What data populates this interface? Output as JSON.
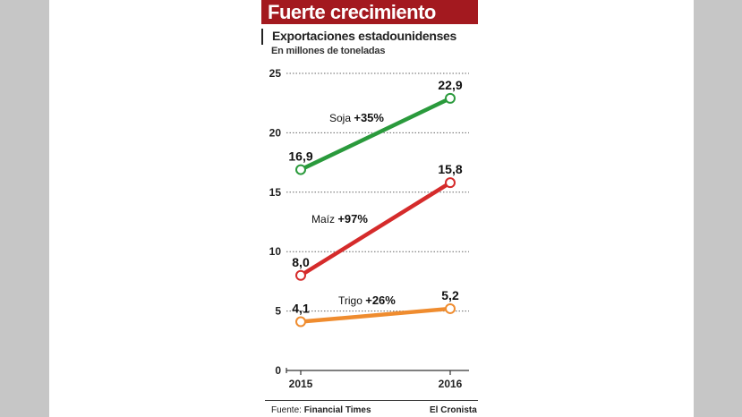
{
  "chart_data": {
    "type": "line",
    "title": "Fuerte crecimiento",
    "subtitle": "Exportaciones estadounidenses",
    "ylabel": "En millones de toneladas",
    "x": [
      "2015",
      "2016"
    ],
    "ylim": [
      0,
      25
    ],
    "yticks": [
      0,
      5,
      10,
      15,
      20,
      25
    ],
    "grid": "dotted horizontal",
    "series": [
      {
        "name": "Soja",
        "change": "+35%",
        "values": [
          16.9,
          22.9
        ],
        "value_labels": [
          "16,9",
          "22,9"
        ],
        "color": "#2a9a3c"
      },
      {
        "name": "Maíz",
        "change": "+97%",
        "values": [
          8.0,
          15.8
        ],
        "value_labels": [
          "8,0",
          "15,8"
        ],
        "color": "#d52b2b"
      },
      {
        "name": "Trigo",
        "change": "+26%",
        "values": [
          4.1,
          5.2
        ],
        "value_labels": [
          "4,1",
          "5,2"
        ],
        "color": "#ef8c2f"
      }
    ]
  },
  "footer": {
    "source_prefix": "Fuente:",
    "source_name": "Financial Times",
    "brand": "El Cronista"
  },
  "colors": {
    "title_bar": "#a3191f",
    "background": "#c6c6c6"
  }
}
